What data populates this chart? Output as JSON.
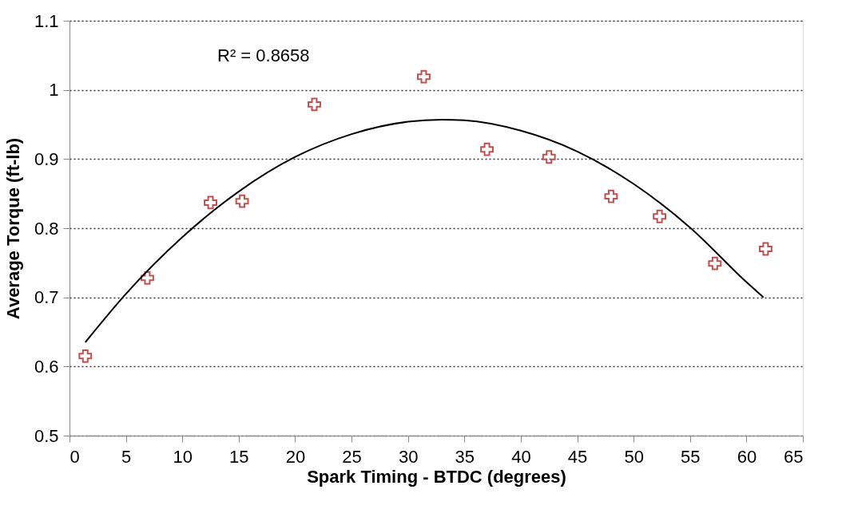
{
  "chart_data": {
    "type": "scatter",
    "xlabel": "Spark Timing - BTDC (degrees)",
    "ylabel": "Average Torque (ft-lb)",
    "xlim": [
      0,
      65
    ],
    "xticks": [
      0,
      5,
      10,
      15,
      20,
      25,
      30,
      35,
      40,
      45,
      50,
      55,
      60,
      65
    ],
    "ylim": [
      0.5,
      1.1
    ],
    "yticks": [
      0.5,
      0.6,
      0.7,
      0.8,
      0.9,
      1,
      1.1
    ],
    "grid": "y",
    "annotations": [
      "R² = 0.8658"
    ],
    "series": [
      {
        "marker": "cross",
        "color": "#c0504d",
        "x": [
          1.4,
          6.9,
          12.5,
          15.3,
          21.7,
          31.4,
          37.0,
          42.5,
          48.0,
          52.3,
          57.2,
          61.7
        ],
        "values": [
          0.615,
          0.728,
          0.837,
          0.839,
          0.979,
          1.019,
          0.914,
          0.903,
          0.846,
          0.817,
          0.749,
          0.77
        ]
      },
      {
        "type": "line",
        "color": "#000000",
        "x": [
          1.4,
          5,
          10,
          15,
          20,
          25,
          30,
          33,
          35,
          40,
          45,
          50,
          55,
          60,
          61.5
        ],
        "values": [
          0.635,
          0.705,
          0.787,
          0.853,
          0.903,
          0.936,
          0.954,
          0.957,
          0.956,
          0.941,
          0.911,
          0.864,
          0.801,
          0.722,
          0.7
        ]
      }
    ]
  }
}
